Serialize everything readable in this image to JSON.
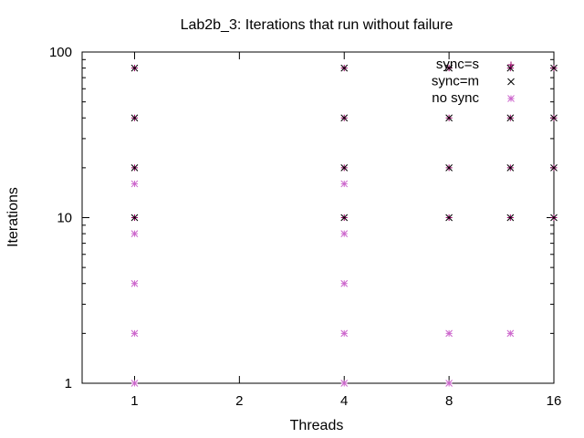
{
  "chart_data": {
    "type": "scatter",
    "title": "Lab2b_3: Iterations that run without failure",
    "xlabel": "Threads",
    "ylabel": "Iterations",
    "x_scale": "log2",
    "y_scale": "log10",
    "xlim": [
      0.707,
      16
    ],
    "ylim": [
      1,
      100
    ],
    "x_ticks": [
      {
        "value": 1,
        "label": "1"
      },
      {
        "value": 2,
        "label": "2"
      },
      {
        "value": 4,
        "label": "4"
      },
      {
        "value": 8,
        "label": "8"
      },
      {
        "value": 16,
        "label": "16"
      }
    ],
    "y_ticks": [
      {
        "value": 1,
        "label": "1"
      },
      {
        "value": 10,
        "label": "10"
      },
      {
        "value": 100,
        "label": "100"
      }
    ],
    "grid": false,
    "legend_position": "top-right",
    "series": [
      {
        "name": "sync=s",
        "marker": "plus",
        "color": "#990066",
        "points": [
          [
            1,
            10
          ],
          [
            1,
            20
          ],
          [
            1,
            40
          ],
          [
            1,
            80
          ],
          [
            4,
            10
          ],
          [
            4,
            20
          ],
          [
            4,
            40
          ],
          [
            4,
            80
          ],
          [
            8,
            10
          ],
          [
            8,
            20
          ],
          [
            8,
            40
          ],
          [
            8,
            80
          ],
          [
            12,
            10
          ],
          [
            12,
            20
          ],
          [
            12,
            40
          ],
          [
            12,
            80
          ],
          [
            16,
            10
          ],
          [
            16,
            20
          ],
          [
            16,
            40
          ],
          [
            16,
            80
          ]
        ]
      },
      {
        "name": "sync=m",
        "marker": "cross",
        "color": "#000000",
        "points": [
          [
            1,
            10
          ],
          [
            1,
            20
          ],
          [
            1,
            40
          ],
          [
            1,
            80
          ],
          [
            4,
            10
          ],
          [
            4,
            20
          ],
          [
            4,
            40
          ],
          [
            4,
            80
          ],
          [
            8,
            10
          ],
          [
            8,
            20
          ],
          [
            8,
            40
          ],
          [
            8,
            80
          ],
          [
            12,
            10
          ],
          [
            12,
            20
          ],
          [
            12,
            40
          ],
          [
            12,
            80
          ],
          [
            16,
            10
          ],
          [
            16,
            20
          ],
          [
            16,
            40
          ],
          [
            16,
            80
          ]
        ]
      },
      {
        "name": "no sync",
        "marker": "star",
        "color": "#cc66cc",
        "points": [
          [
            1,
            1
          ],
          [
            1,
            2
          ],
          [
            1,
            4
          ],
          [
            1,
            8
          ],
          [
            1,
            16
          ],
          [
            4,
            1
          ],
          [
            4,
            2
          ],
          [
            4,
            4
          ],
          [
            4,
            8
          ],
          [
            4,
            16
          ],
          [
            8,
            1
          ],
          [
            8,
            2
          ],
          [
            12,
            2
          ]
        ]
      }
    ]
  }
}
